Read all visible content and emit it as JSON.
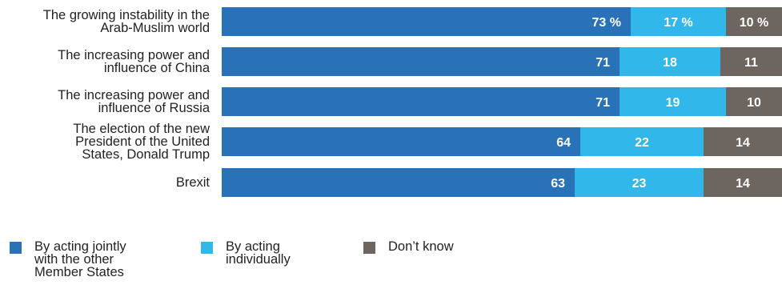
{
  "chart_data": {
    "type": "bar",
    "stacked": true,
    "orientation": "horizontal",
    "categories": [
      "The growing instability in the\nArab-Muslim world",
      "The increasing power and\ninfluence of China",
      "The increasing power and\ninfluence of Russia",
      "The election of the new\nPresident of the United\nStates, Donald Trump",
      "Brexit"
    ],
    "series": [
      {
        "name": "By acting jointly\nwith the other\nMember States",
        "values": [
          73,
          71,
          71,
          64,
          63
        ],
        "color": "#2a72b8"
      },
      {
        "name": "By acting\nindividually",
        "values": [
          17,
          18,
          19,
          22,
          23
        ],
        "color": "#31b7e9"
      },
      {
        "name": "Don’t know",
        "values": [
          10,
          11,
          10,
          14,
          14
        ],
        "color": "#6d6560"
      }
    ],
    "value_labels": [
      [
        "73 %",
        "17 %",
        "10 %"
      ],
      [
        "71",
        "18",
        "11"
      ],
      [
        "71",
        "19",
        "10"
      ],
      [
        "64",
        "22",
        "14"
      ],
      [
        "63",
        "23",
        "14"
      ]
    ],
    "xlim": [
      0,
      100
    ],
    "legend": "bottom-left",
    "grid": false
  }
}
